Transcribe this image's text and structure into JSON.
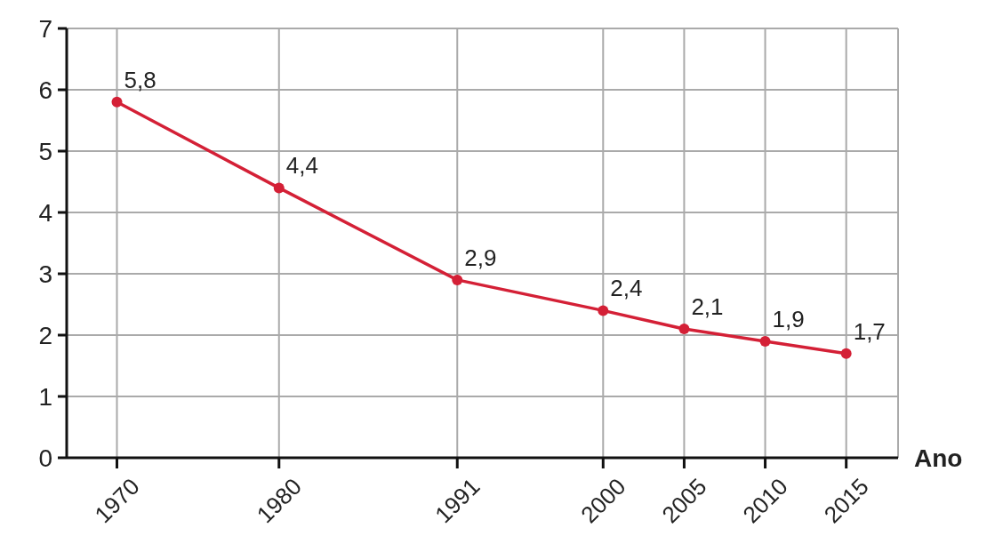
{
  "chart_data": {
    "type": "line",
    "xlabel": "Ano",
    "x": [
      1970,
      1980,
      1991,
      2000,
      2005,
      2010,
      2015
    ],
    "series": [
      {
        "color": "#d42036",
        "values": [
          5.8,
          4.4,
          2.9,
          2.4,
          2.1,
          1.9,
          1.7
        ],
        "value_labels": [
          "5,8",
          "4,4",
          "2,9",
          "2,4",
          "2,1",
          "1,9",
          "1,7"
        ]
      }
    ],
    "xlim": [
      1966.9,
      2018.2
    ],
    "xticks": [
      1970,
      1980,
      1991,
      2000,
      2005,
      2010,
      2015
    ],
    "ylim": [
      0,
      7
    ],
    "yticks": [
      0,
      1,
      2,
      3,
      4,
      5,
      6,
      7
    ],
    "grid": true,
    "marker": "circle",
    "line_style": "solid"
  }
}
